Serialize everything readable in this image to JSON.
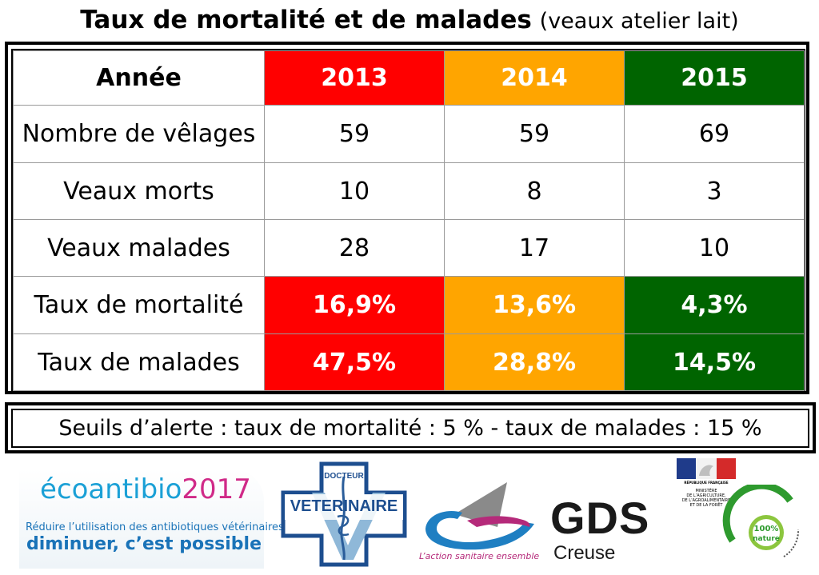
{
  "title": {
    "main": "Taux de mortalité et de malades",
    "sub": "(veaux atelier lait)"
  },
  "table": {
    "header": [
      "Année",
      "2013",
      "2014",
      "2015"
    ],
    "rows": [
      {
        "label": "Nombre de vêlages",
        "values": [
          "59",
          "59",
          "69"
        ]
      },
      {
        "label": "Veaux morts",
        "values": [
          "10",
          "8",
          "3"
        ]
      },
      {
        "label": "Veaux malades",
        "values": [
          "28",
          "17",
          "10"
        ]
      },
      {
        "label": "Taux de mortalité",
        "values": [
          "16,9%",
          "13,6%",
          "4,3%"
        ]
      },
      {
        "label": "Taux de malades",
        "values": [
          "47,5%",
          "28,8%",
          "14,5%"
        ]
      }
    ],
    "year_colors": [
      "#ff0000",
      "#ffa500",
      "#006400"
    ]
  },
  "alert": "Seuils d’alerte : taux de mortalité : 5 % - taux de malades : 15 %",
  "logos": {
    "ecoantibio": {
      "brand_part1": "écoantibio",
      "brand_part2": "2017",
      "tagline1": "Réduire l’utilisation des antibiotiques vétérinaires :",
      "tagline2": "diminuer, c’est possible"
    },
    "veterinaire": {
      "top": "DOCTEUR",
      "label": "VETERINAIRE"
    },
    "action_sanitaire": {
      "tagline": "L’action sanitaire ensemble"
    },
    "gds": {
      "title": "GDS",
      "subtitle": "Creuse"
    },
    "ministere": {
      "republique": "RÉPUBLIQUE FRANÇAISE",
      "name": "MINISTÈRE\nDE L’AGRICULTURE,\nDE L’AGROALIMENTAIRE\nET DE LA FORÊT"
    },
    "enseignement": {
      "arc": "ENSEIGNEMENT AGRICOLE",
      "badge": "100% nature"
    }
  }
}
